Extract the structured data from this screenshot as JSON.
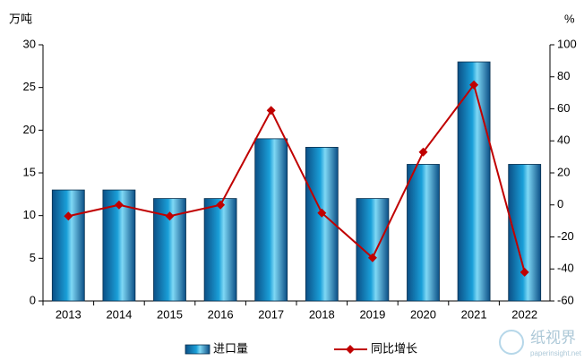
{
  "chart_data": {
    "type": "bar-line",
    "y_label": "万吨",
    "y2_label": "%",
    "categories": [
      "2013",
      "2014",
      "2015",
      "2016",
      "2017",
      "2018",
      "2019",
      "2020",
      "2021",
      "2022"
    ],
    "series": [
      {
        "name": "进口量",
        "type": "bar",
        "color": "#1a9fd8",
        "values": [
          13,
          13,
          12,
          12,
          19,
          18,
          12,
          16,
          28,
          16
        ]
      },
      {
        "name": "同比增长",
        "type": "line",
        "axis": "y2",
        "color": "#c00000",
        "values": [
          -7,
          0,
          -7,
          0,
          59,
          -5,
          -33,
          33,
          75,
          -42
        ]
      }
    ],
    "ylim": [
      0,
      30
    ],
    "yticks": [
      0,
      5,
      10,
      15,
      20,
      25,
      30
    ],
    "y2lim": [
      -60,
      100
    ],
    "y2ticks": [
      -60,
      -40,
      -20,
      0,
      20,
      40,
      60,
      80,
      100
    ],
    "legend": "bottom",
    "watermark": "纸视界",
    "watermark_url": "paperinsight.net"
  }
}
